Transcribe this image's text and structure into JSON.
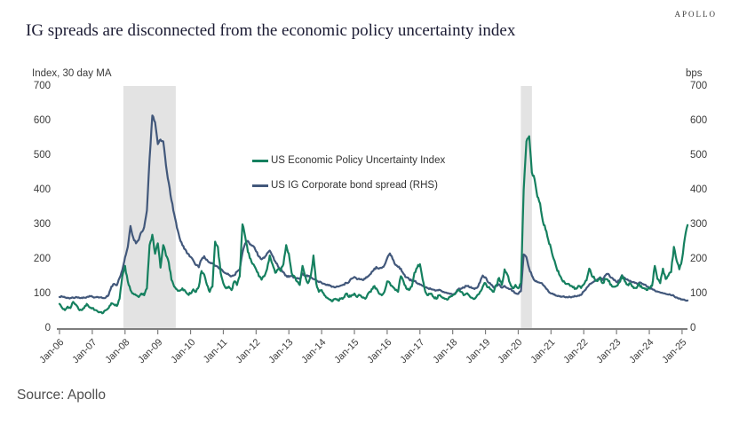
{
  "logo": "APOLLO",
  "title": "IG spreads are disconnected from the economic policy uncertainty index",
  "source": "Source: Apollo",
  "chart_data": {
    "type": "line",
    "title": "IG spreads are disconnected from the economic policy uncertainty index",
    "grid": false,
    "legend_position": "inside-top-center",
    "left_axis": {
      "label": "Index, 30 day MA",
      "ticks": [
        0,
        100,
        200,
        300,
        400,
        500,
        600,
        700
      ],
      "range": [
        0,
        700
      ]
    },
    "right_axis": {
      "label": "bps",
      "ticks": [
        0,
        100,
        200,
        300,
        400,
        500,
        600,
        700
      ],
      "range": [
        0,
        700
      ]
    },
    "x_axis": {
      "tick_labels": [
        "Jan-06",
        "Jan-07",
        "Jan-08",
        "Jan-09",
        "Jan-10",
        "Jan-11",
        "Jan-12",
        "Jan-13",
        "Jan-14",
        "Jan-15",
        "Jan-16",
        "Jan-17",
        "Jan-18",
        "Jan-19",
        "Jan-20",
        "Jan-21",
        "Jan-22",
        "Jan-23",
        "Jan-24",
        "Jan-25"
      ],
      "start_year": 2006,
      "end_year": 2025.25
    },
    "recession_bands": [
      {
        "from": 2007.95,
        "to": 2009.55
      },
      {
        "from": 2020.08,
        "to": 2020.42
      }
    ],
    "band_color": "#e3e3e3",
    "axis_color": "#7d7d7d",
    "series": [
      {
        "name": "US Economic Policy Uncertainty Index",
        "color": "#15805f",
        "axis": "left",
        "start_year": 2006.0,
        "interval": "monthly",
        "values": [
          70,
          58,
          52,
          62,
          58,
          76,
          68,
          55,
          52,
          58,
          70,
          60,
          58,
          52,
          48,
          46,
          44,
          52,
          58,
          72,
          68,
          64,
          85,
          150,
          180,
          135,
          110,
          100,
          95,
          90,
          100,
          95,
          115,
          240,
          270,
          215,
          245,
          175,
          240,
          210,
          190,
          140,
          120,
          112,
          108,
          115,
          108,
          98,
          100,
          112,
          105,
          120,
          165,
          155,
          125,
          105,
          120,
          250,
          235,
          160,
          130,
          115,
          120,
          110,
          135,
          125,
          150,
          300,
          265,
          220,
          200,
          185,
          170,
          150,
          140,
          150,
          170,
          210,
          185,
          160,
          170,
          165,
          185,
          240,
          215,
          160,
          150,
          135,
          125,
          180,
          150,
          130,
          150,
          210,
          130,
          105,
          110,
          95,
          88,
          82,
          78,
          85,
          80,
          85,
          88,
          100,
          90,
          95,
          100,
          90,
          95,
          88,
          85,
          100,
          105,
          120,
          115,
          100,
          95,
          105,
          135,
          130,
          120,
          110,
          105,
          150,
          135,
          115,
          110,
          120,
          160,
          175,
          185,
          140,
          105,
          95,
          100,
          90,
          85,
          95,
          90,
          85,
          82,
          90,
          95,
          100,
          110,
          105,
          95,
          100,
          95,
          88,
          85,
          95,
          105,
          120,
          130,
          118,
          112,
          105,
          125,
          145,
          125,
          170,
          155,
          130,
          115,
          125,
          115,
          130,
          400,
          540,
          555,
          450,
          430,
          380,
          360,
          310,
          285,
          255,
          230,
          200,
          175,
          155,
          140,
          132,
          128,
          122,
          118,
          115,
          122,
          116,
          126,
          138,
          172,
          150,
          142,
          136,
          146,
          130,
          142,
          136,
          126,
          120,
          122,
          132,
          152,
          136,
          126,
          130,
          120,
          116,
          126,
          122,
          116,
          110,
          116,
          122,
          180,
          142,
          130,
          172,
          142,
          152,
          162,
          235,
          195,
          170,
          200,
          260,
          298
        ]
      },
      {
        "name": "US IG Corporate bond spread (RHS)",
        "color": "#42587b",
        "axis": "right",
        "start_year": 2006.0,
        "interval": "monthly",
        "values": [
          90,
          91,
          89,
          88,
          87,
          88,
          90,
          89,
          88,
          88,
          90,
          93,
          91,
          89,
          90,
          89,
          87,
          89,
          96,
          120,
          128,
          124,
          145,
          168,
          205,
          235,
          295,
          262,
          245,
          255,
          278,
          292,
          340,
          490,
          615,
          595,
          532,
          545,
          540,
          470,
          420,
          370,
          330,
          290,
          260,
          240,
          228,
          215,
          206,
          196,
          182,
          176,
          198,
          208,
          198,
          190,
          187,
          180,
          177,
          172,
          163,
          158,
          154,
          150,
          153,
          163,
          168,
          218,
          245,
          252,
          242,
          237,
          222,
          207,
          199,
          203,
          216,
          224,
          209,
          193,
          179,
          169,
          162,
          152,
          148,
          151,
          147,
          145,
          142,
          158,
          152,
          150,
          146,
          142,
          138,
          133,
          131,
          128,
          126,
          123,
          120,
          118,
          120,
          123,
          126,
          131,
          133,
          143,
          148,
          141,
          141,
          139,
          143,
          150,
          157,
          167,
          177,
          172,
          174,
          182,
          202,
          216,
          200,
          183,
          177,
          172,
          157,
          147,
          142,
          137,
          136,
          130,
          126,
          122,
          118,
          115,
          113,
          111,
          109,
          111,
          107,
          103,
          101,
          99,
          96,
          102,
          112,
          114,
          117,
          122,
          119,
          116,
          113,
          117,
          132,
          152,
          147,
          132,
          126,
          117,
          122,
          127,
          117,
          122,
          116,
          113,
          107,
          101,
          99,
          107,
          213,
          205,
          172,
          152,
          138,
          133,
          131,
          126,
          117,
          107,
          100,
          97,
          94,
          92,
          91,
          90,
          89,
          90,
          91,
          92,
          94,
          96,
          106,
          116,
          126,
          131,
          136,
          141,
          147,
          139,
          153,
          157,
          146,
          139,
          133,
          137,
          153,
          145,
          141,
          137,
          133,
          131,
          129,
          131,
          126,
          121,
          116,
          113,
          109,
          106,
          103,
          101,
          99,
          97,
          95,
          93,
          89,
          86,
          83,
          81,
          80
        ]
      }
    ]
  }
}
